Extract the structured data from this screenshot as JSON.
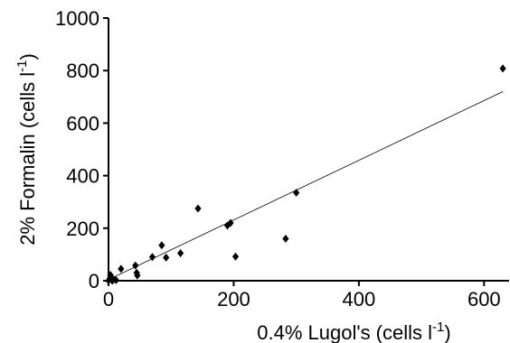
{
  "chart_data": {
    "type": "scatter",
    "title": "",
    "xlabel": "0.4% Lugol's (cells l",
    "xlabel_sup": "-1",
    "xlabel_end": ")",
    "ylabel": "2% Formalin (cells l",
    "ylabel_sup": "-1",
    "ylabel_end": ")",
    "xlim": [
      0,
      640
    ],
    "ylim": [
      0,
      1000
    ],
    "x_ticks": [
      0,
      200,
      400,
      600
    ],
    "y_ticks": [
      0,
      200,
      400,
      600,
      800,
      1000
    ],
    "grid": false,
    "marker": "diamond",
    "marker_color": "#000000",
    "points": [
      {
        "x": 0,
        "y": 0
      },
      {
        "x": 2,
        "y": 8
      },
      {
        "x": 3,
        "y": 22
      },
      {
        "x": 6,
        "y": 0
      },
      {
        "x": 8,
        "y": 5
      },
      {
        "x": 12,
        "y": 2
      },
      {
        "x": 20,
        "y": 45
      },
      {
        "x": 43,
        "y": 58
      },
      {
        "x": 45,
        "y": 30
      },
      {
        "x": 46,
        "y": 20
      },
      {
        "x": 70,
        "y": 90
      },
      {
        "x": 85,
        "y": 135
      },
      {
        "x": 92,
        "y": 88
      },
      {
        "x": 115,
        "y": 105
      },
      {
        "x": 143,
        "y": 275
      },
      {
        "x": 190,
        "y": 210
      },
      {
        "x": 195,
        "y": 220
      },
      {
        "x": 203,
        "y": 92
      },
      {
        "x": 283,
        "y": 160
      },
      {
        "x": 300,
        "y": 335
      },
      {
        "x": 630,
        "y": 808
      }
    ],
    "fit_line": {
      "x": [
        0,
        630
      ],
      "y": [
        4,
        720
      ]
    }
  }
}
